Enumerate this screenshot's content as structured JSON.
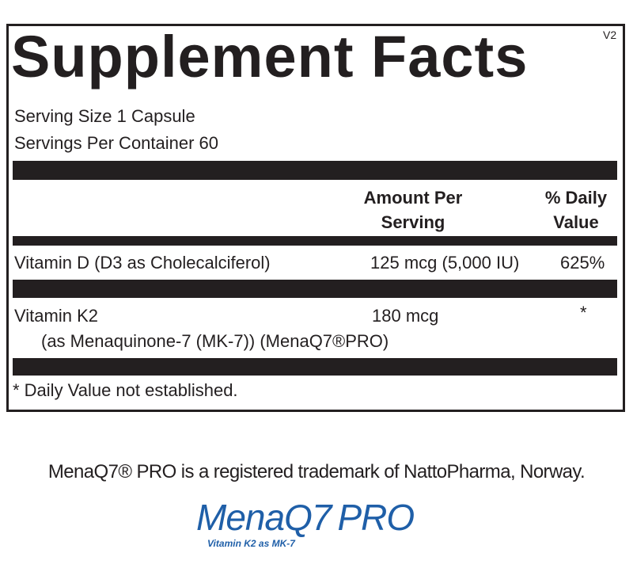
{
  "label": {
    "version": "V2",
    "title": "Supplement Facts",
    "serving_size": "Serving Size 1 Capsule",
    "servings_per_container": "Servings Per Container 60",
    "header": {
      "amount": [
        "Amount Per",
        "Serving"
      ],
      "daily": [
        "% Daily",
        "Value"
      ]
    },
    "rows": [
      {
        "name": "Vitamin D (D3 as Cholecalciferol)",
        "amount": "125 mcg (5,000 IU)",
        "daily": "625%"
      },
      {
        "name": "Vitamin K2",
        "detail": "(as Menaquinone-7 (MK-7)) (MenaQ7®PRO)",
        "amount": "180 mcg",
        "daily": "*"
      }
    ],
    "footnote": "* Daily Value not established."
  },
  "trademark": "MenaQ7® PRO is a registered trademark of NattoPharma, Norway.",
  "logo": {
    "name": "MenaQ7",
    "suffix": "PRO",
    "tagline": "Vitamin K2 as MK-7"
  }
}
